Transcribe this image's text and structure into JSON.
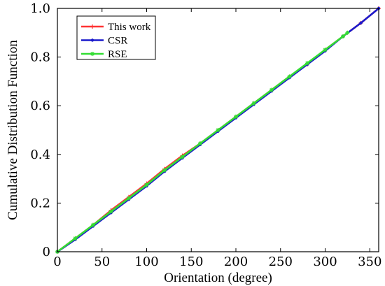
{
  "chart_data": {
    "type": "line",
    "xlabel": "Orientation (degree)",
    "ylabel": "Cumulative Distribution Function",
    "xlim": [
      0,
      360
    ],
    "ylim": [
      0,
      1.0
    ],
    "xticks": [
      0,
      50,
      100,
      150,
      200,
      250,
      300,
      350
    ],
    "yticks": [
      0,
      0.2,
      0.4,
      0.6,
      0.8,
      1.0
    ],
    "xtick_labels": [
      "0",
      "50",
      "100",
      "150",
      "200",
      "250",
      "300",
      "350"
    ],
    "ytick_labels": [
      "0",
      "0.2",
      "0.4",
      "0.6",
      "0.8",
      "1.0"
    ],
    "grid": false,
    "legend_position": "top-left",
    "series": [
      {
        "name": "This work",
        "color": "#ff3333",
        "marker": "plus",
        "x": [
          0,
          20,
          40,
          60,
          80,
          100,
          120,
          140,
          160,
          180,
          200,
          220,
          240,
          260,
          280,
          300,
          320,
          340,
          360
        ],
        "y": [
          0,
          0.055,
          0.11,
          0.17,
          0.225,
          0.28,
          0.34,
          0.395,
          0.445,
          0.5,
          0.555,
          0.61,
          0.665,
          0.72,
          0.77,
          0.83,
          0.885,
          0.94,
          1.0
        ]
      },
      {
        "name": "CSR",
        "color": "#1a1acc",
        "marker": "dot",
        "x": [
          0,
          20,
          40,
          60,
          80,
          100,
          120,
          140,
          160,
          180,
          200,
          220,
          240,
          260,
          280,
          300,
          320,
          340,
          360
        ],
        "y": [
          0,
          0.05,
          0.105,
          0.16,
          0.215,
          0.27,
          0.33,
          0.385,
          0.44,
          0.495,
          0.55,
          0.605,
          0.66,
          0.715,
          0.77,
          0.825,
          0.885,
          0.94,
          1.0
        ]
      },
      {
        "name": "RSE",
        "color": "#33dd33",
        "marker": "asterisk",
        "x": [
          0,
          20,
          40,
          60,
          80,
          100,
          120,
          140,
          160,
          180,
          200,
          220,
          240,
          260,
          280,
          300,
          320,
          325
        ],
        "y": [
          0,
          0.055,
          0.11,
          0.165,
          0.22,
          0.275,
          0.335,
          0.39,
          0.445,
          0.5,
          0.555,
          0.61,
          0.665,
          0.72,
          0.775,
          0.83,
          0.885,
          0.9
        ]
      }
    ]
  }
}
